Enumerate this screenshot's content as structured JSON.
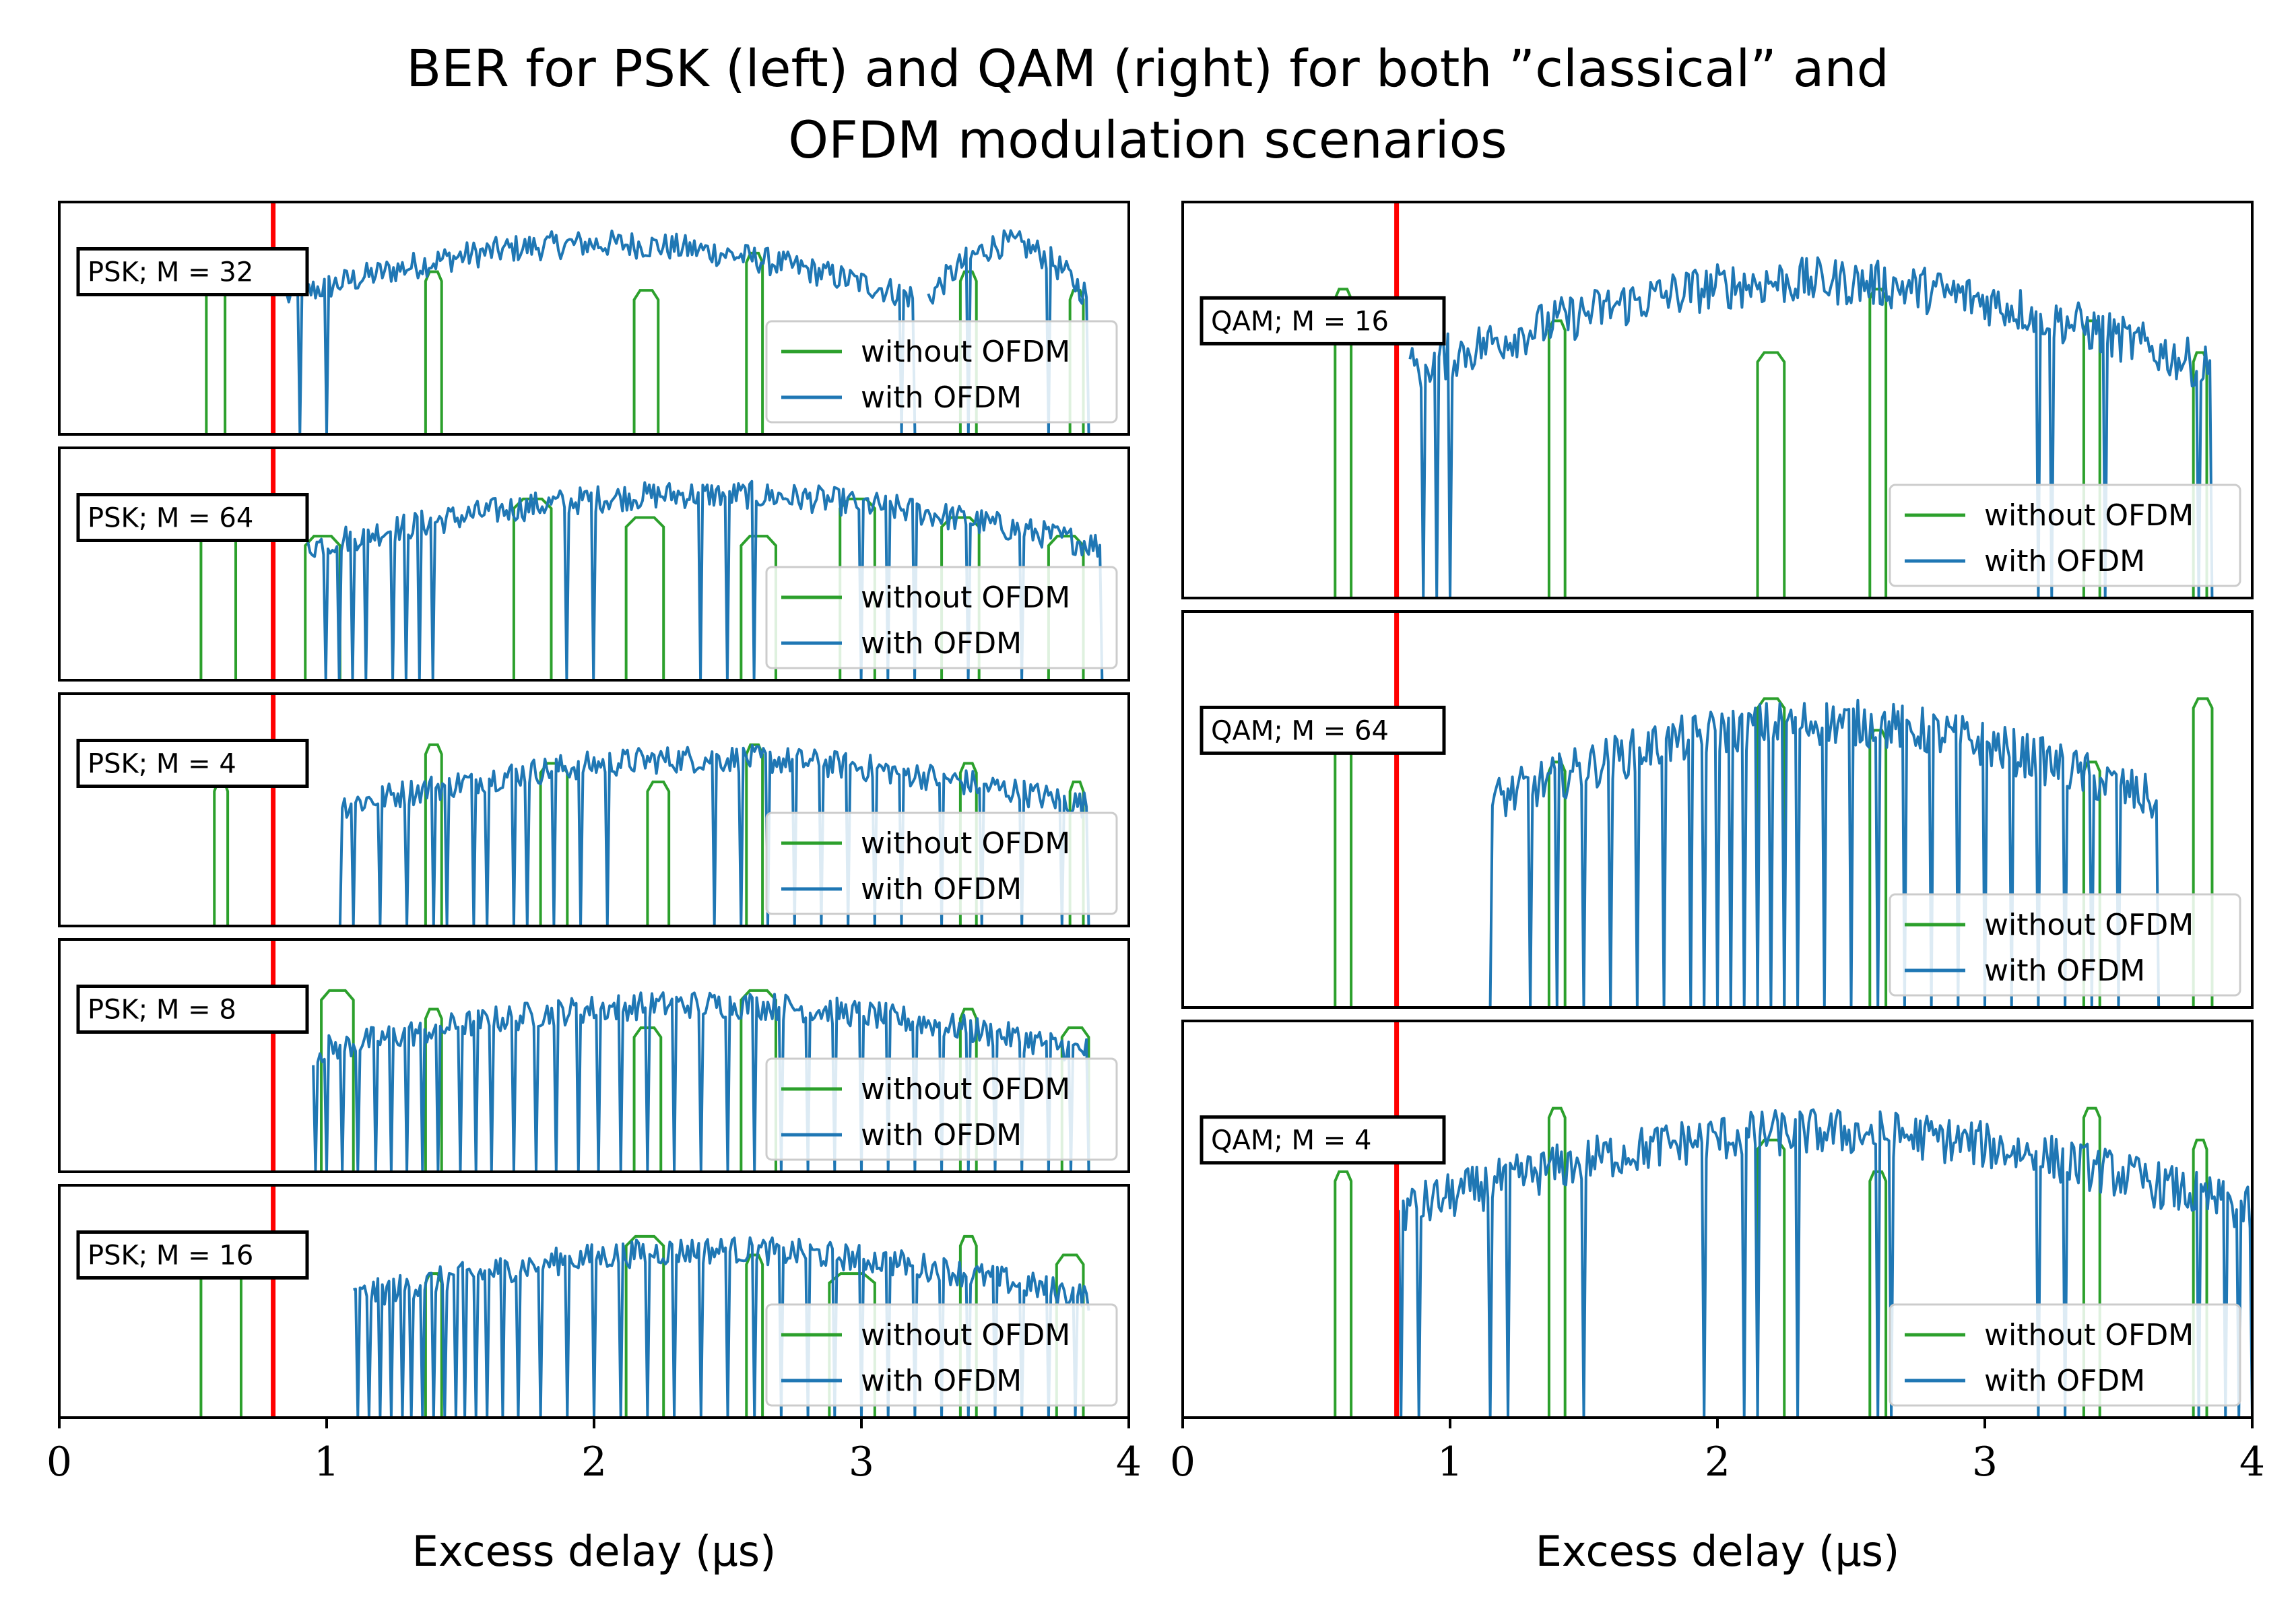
{
  "chart_data": {
    "type": "line",
    "title_line1": "BER for PSK (left) and QAM (right) for both ”classical” and",
    "title_line2": "OFDM modulation scenarios",
    "xlabel": "Excess delay (μs)",
    "xlim": [
      0,
      4
    ],
    "xticks": [
      "0",
      "1",
      "2",
      "3",
      "4"
    ],
    "reference_line": {
      "x": 0.8,
      "color": "#ff0000"
    },
    "series_style": {
      "without_ofdm": {
        "name": "without OFDM",
        "color": "#2ca02c"
      },
      "with_ofdm": {
        "name": "with OFDM",
        "color": "#1f77b4"
      }
    },
    "columns": [
      {
        "side": "left",
        "panels": [
          {
            "label": "PSK; M = 32",
            "without_ofdm_peaks": [
              [
                0.55,
                0.62
              ],
              [
                1.37,
                1.43
              ],
              [
                2.15,
                2.24
              ],
              [
                2.57,
                2.63
              ],
              [
                3.37,
                3.43
              ],
              [
                3.78,
                3.83
              ]
            ],
            "with_ofdm_segments": [
              [
                0.85,
                3.2
              ],
              [
                3.25,
                3.85
              ]
            ],
            "with_ofdm_level": 0.82,
            "with_ofdm_dips": [
              0.9,
              1.0,
              3.15,
              3.2,
              3.4,
              3.7,
              3.85
            ]
          },
          {
            "label": "PSK; M = 64",
            "without_ofdm_peaks": [
              [
                0.53,
                0.66
              ],
              [
                0.92,
                1.05
              ],
              [
                1.7,
                1.84
              ],
              [
                2.12,
                2.26
              ],
              [
                2.55,
                2.68
              ],
              [
                2.92,
                3.05
              ],
              [
                3.3,
                3.44
              ],
              [
                3.7,
                3.83
              ]
            ],
            "with_ofdm_segments": [
              [
                0.93,
                3.9
              ]
            ],
            "with_ofdm_level": 0.8,
            "with_ofdm_dips": [
              1.0,
              1.05,
              1.1,
              1.15,
              1.25,
              1.3,
              1.35,
              1.4,
              1.9,
              2.0,
              2.4,
              2.5,
              2.6,
              3.0,
              3.1,
              3.2,
              3.4,
              3.6,
              3.9
            ]
          },
          {
            "label": "PSK; M = 4",
            "without_ofdm_peaks": [
              [
                0.58,
                0.63
              ],
              [
                1.37,
                1.43
              ],
              [
                1.8,
                1.9
              ],
              [
                2.2,
                2.28
              ],
              [
                2.57,
                2.63
              ],
              [
                3.37,
                3.43
              ],
              [
                3.78,
                3.83
              ]
            ],
            "with_ofdm_segments": [
              [
                1.05,
                3.85
              ]
            ],
            "with_ofdm_level": 0.72,
            "with_ofdm_dips": [
              1.05,
              1.1,
              1.2,
              1.3,
              1.4,
              1.45,
              1.55,
              1.6,
              1.7,
              1.75,
              1.85,
              1.95,
              2.05,
              2.45,
              2.55,
              2.65,
              2.75,
              2.85,
              2.95,
              3.05,
              3.15,
              3.3,
              3.45,
              3.6,
              3.75,
              3.85
            ]
          },
          {
            "label": "PSK; M = 8",
            "without_ofdm_peaks": [
              [
                0.98,
                1.1
              ],
              [
                1.37,
                1.43
              ],
              [
                2.15,
                2.25
              ],
              [
                2.55,
                2.68
              ],
              [
                3.37,
                3.43
              ],
              [
                3.75,
                3.85
              ]
            ],
            "with_ofdm_segments": [
              [
                0.95,
                3.85
              ]
            ],
            "with_ofdm_level": 0.72,
            "with_ofdm_dips": [
              0.96,
              1.0,
              1.06,
              1.12,
              1.18,
              1.24,
              1.3,
              1.36,
              1.42,
              1.5,
              1.56,
              1.62,
              1.7,
              1.78,
              1.86,
              1.94,
              2.02,
              2.1,
              2.2,
              2.3,
              2.4,
              2.5,
              2.6,
              2.7,
              2.8,
              2.9,
              3.0,
              3.1,
              3.2,
              3.3,
              3.4,
              3.5,
              3.6,
              3.7,
              3.78,
              3.85
            ]
          },
          {
            "label": "PSK; M = 16",
            "without_ofdm_peaks": [
              [
                0.53,
                0.68
              ],
              [
                1.37,
                1.43
              ],
              [
                2.12,
                2.26
              ],
              [
                2.57,
                2.63
              ],
              [
                2.88,
                3.05
              ],
              [
                3.37,
                3.43
              ],
              [
                3.73,
                3.83
              ]
            ],
            "with_ofdm_segments": [
              [
                1.1,
                3.85
              ]
            ],
            "with_ofdm_level": 0.72,
            "with_ofdm_dips": [
              1.12,
              1.16,
              1.2,
              1.24,
              1.28,
              1.32,
              1.36,
              1.4,
              1.44,
              1.48,
              1.52,
              1.56,
              1.6,
              1.66,
              1.72,
              1.8,
              1.9,
              2.0,
              2.1,
              2.2,
              2.3,
              2.4,
              2.5,
              2.6,
              2.7,
              2.8,
              2.9,
              3.0,
              3.1,
              3.2,
              3.3,
              3.4,
              3.5,
              3.6,
              3.7,
              3.8
            ]
          }
        ]
      },
      {
        "side": "right",
        "panels": [
          {
            "label": "QAM; M = 16",
            "without_ofdm_peaks": [
              [
                0.57,
                0.63
              ],
              [
                1.37,
                1.43
              ],
              [
                2.15,
                2.25
              ],
              [
                2.57,
                2.63
              ],
              [
                3.37,
                3.43
              ],
              [
                3.78,
                3.83
              ]
            ],
            "with_ofdm_segments": [
              [
                0.85,
                3.85
              ]
            ],
            "with_ofdm_level": 0.8,
            "with_ofdm_dips": [
              0.9,
              0.95,
              1.0,
              3.2,
              3.25,
              3.45,
              3.8,
              3.85
            ]
          },
          {
            "label": "QAM; M = 64",
            "without_ofdm_peaks": [
              [
                0.57,
                0.63
              ],
              [
                1.37,
                1.43
              ],
              [
                2.15,
                2.25
              ],
              [
                2.57,
                2.63
              ],
              [
                3.37,
                3.43
              ],
              [
                3.78,
                3.85
              ]
            ],
            "with_ofdm_segments": [
              [
                1.15,
                3.65
              ]
            ],
            "with_ofdm_level": 0.72,
            "with_ofdm_dips": [
              1.15,
              1.3,
              1.4,
              1.5,
              1.6,
              1.7,
              1.8,
              1.9,
              1.95,
              2.0,
              2.05,
              2.1,
              2.15,
              2.2,
              2.25,
              2.3,
              2.4,
              2.5,
              2.6,
              2.7,
              2.8,
              2.9,
              3.0,
              3.1,
              3.2,
              3.3,
              3.4,
              3.5,
              3.65
            ]
          },
          {
            "label": "QAM; M = 4",
            "without_ofdm_peaks": [
              [
                0.57,
                0.63
              ],
              [
                1.37,
                1.43
              ],
              [
                2.15,
                2.25
              ],
              [
                2.57,
                2.63
              ],
              [
                3.37,
                3.43
              ],
              [
                3.78,
                3.83
              ]
            ],
            "with_ofdm_segments": [
              [
                0.8,
                4.0
              ]
            ],
            "with_ofdm_level": 0.72,
            "with_ofdm_dips": [
              0.82,
              0.88,
              1.15,
              1.22,
              1.5,
              1.95,
              2.1,
              2.15,
              2.3,
              2.6,
              2.65,
              3.2,
              3.3,
              3.8,
              3.9,
              3.95,
              4.0
            ]
          }
        ]
      }
    ]
  }
}
